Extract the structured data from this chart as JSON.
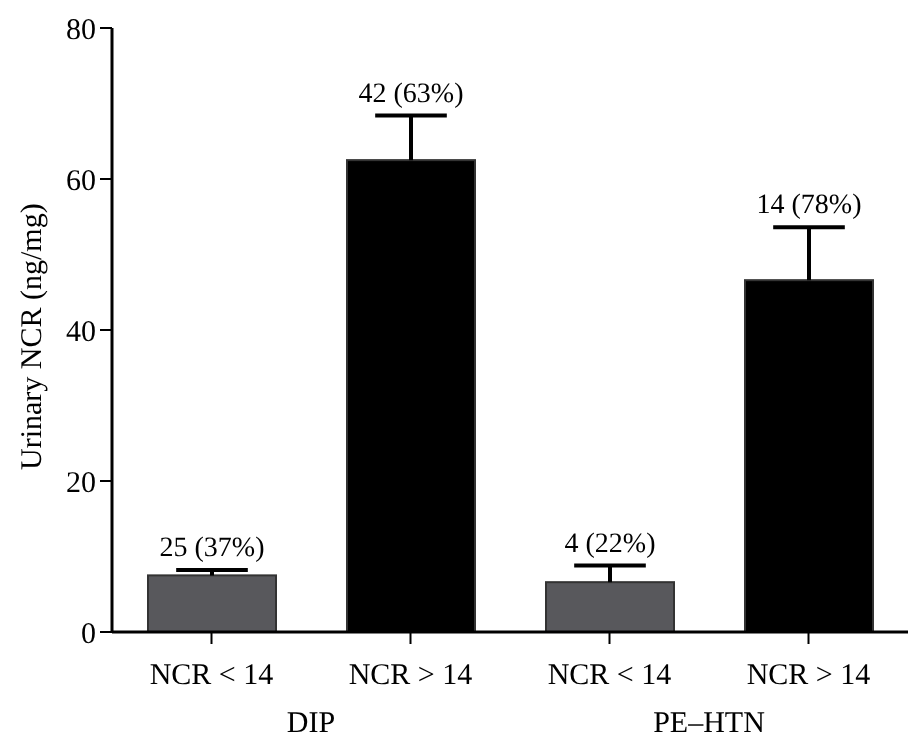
{
  "chart_data": {
    "type": "bar",
    "ylabel": "Urinary NCR (ng/mg)",
    "categories": [
      "NCR < 14",
      "NCR > 14",
      "NCR < 14",
      "NCR > 14"
    ],
    "values": [
      7.5,
      62.5,
      6.6,
      46.6
    ],
    "colors": [
      "#58585c",
      "#000000",
      "#58585c",
      "#000000"
    ],
    "errors": [
      [
        7.5,
        8.2
      ],
      [
        62.5,
        68.4
      ],
      [
        6.6,
        8.8
      ],
      [
        46.6,
        53.6
      ]
    ],
    "annotations": [
      "25 (37%)",
      "42 (63%)",
      "4 (22%)",
      "14 (78%)",
      "DIP",
      "PE–HTN"
    ],
    "ylim": [
      0,
      80
    ],
    "yticks": [
      0,
      20,
      40,
      60,
      80
    ],
    "grid": false
  }
}
